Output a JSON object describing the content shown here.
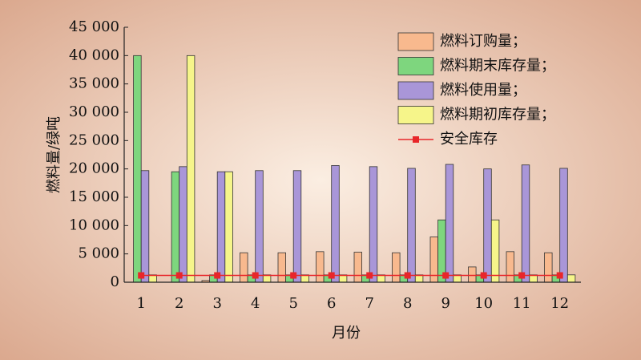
{
  "chart_data": {
    "type": "bar",
    "x_label": "月份",
    "y_label": "燃料量/绿吨",
    "categories": [
      "1",
      "2",
      "3",
      "4",
      "5",
      "6",
      "7",
      "8",
      "9",
      "10",
      "11",
      "12"
    ],
    "series": [
      {
        "name": "燃料订购量；",
        "color": "#f8b98e",
        "values": [
          0,
          0,
          300,
          5200,
          5200,
          5400,
          5300,
          5200,
          8000,
          2700,
          5400,
          5200
        ]
      },
      {
        "name": "燃料期末库存量；",
        "color": "#7ed67e",
        "values": [
          40000,
          19500,
          1300,
          1300,
          1300,
          1300,
          1300,
          1300,
          11000,
          1300,
          1300,
          1300
        ]
      },
      {
        "name": "燃料使用量；",
        "color": "#a996d8",
        "values": [
          19700,
          20400,
          19500,
          19700,
          19700,
          20600,
          20400,
          20100,
          20800,
          20000,
          20700,
          20100
        ]
      },
      {
        "name": "燃料期初库存量；",
        "color": "#f6f58a",
        "values": [
          1300,
          40000,
          19500,
          1300,
          1300,
          1300,
          1300,
          1300,
          1300,
          11000,
          1300,
          1300
        ]
      },
      {
        "name": "安全库存",
        "type": "line",
        "color": "#e8262a",
        "values": [
          1200,
          1200,
          1200,
          1200,
          1200,
          1200,
          1200,
          1200,
          1200,
          1200,
          1200,
          1200
        ]
      }
    ],
    "ylim": [
      0,
      45000
    ],
    "yticks": [
      0,
      {
        "value": 5000,
        "label": "5 000"
      },
      {
        "value": 10000,
        "label": "10 000"
      },
      {
        "value": 15000,
        "label": "15 000"
      },
      {
        "value": 20000,
        "label": "20 000"
      },
      {
        "value": 25000,
        "label": "25 000"
      },
      {
        "value": 30000,
        "label": "30 000"
      },
      {
        "value": 35000,
        "label": "35 000"
      },
      {
        "value": 40000,
        "label": "40 000"
      },
      {
        "value": 45000,
        "label": "45 000"
      }
    ],
    "legend": "upper right",
    "grid": false
  }
}
